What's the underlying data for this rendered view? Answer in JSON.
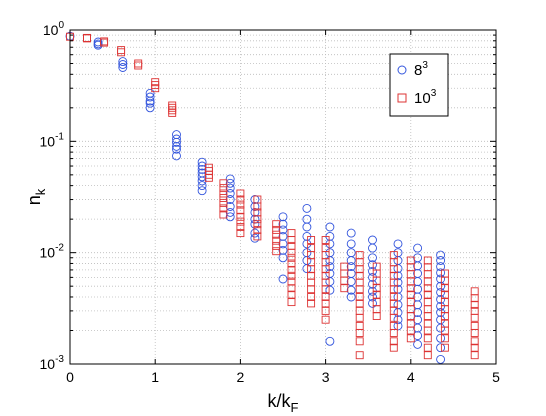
{
  "chart_data": {
    "type": "scatter",
    "xlabel": "k/k",
    "xlabel_sub": "F",
    "ylabel": "n",
    "ylabel_sub": "k",
    "xlim": [
      0,
      5
    ],
    "ylim": [
      0.001,
      1
    ],
    "yscale": "log",
    "grid": true,
    "legend_position": "top-right",
    "x_ticks": [
      0,
      1,
      2,
      3,
      4,
      5
    ],
    "y_ticks": [
      {
        "value": 1,
        "base": "10",
        "exp": "0"
      },
      {
        "value": 0.1,
        "base": "10",
        "exp": "-1"
      },
      {
        "value": 0.01,
        "base": "10",
        "exp": "-2"
      },
      {
        "value": 0.001,
        "base": "10",
        "exp": "-3"
      }
    ],
    "series": [
      {
        "name": "8",
        "name_sup": "3",
        "color": "#3355dd",
        "marker": "circle",
        "points": [
          [
            0.0,
            0.88
          ],
          [
            0.33,
            0.78
          ],
          [
            0.33,
            0.75
          ],
          [
            0.33,
            0.73
          ],
          [
            0.62,
            0.52
          ],
          [
            0.62,
            0.49
          ],
          [
            0.62,
            0.46
          ],
          [
            0.94,
            0.27
          ],
          [
            0.94,
            0.25
          ],
          [
            0.94,
            0.23
          ],
          [
            0.94,
            0.22
          ],
          [
            0.94,
            0.2
          ],
          [
            1.25,
            0.115
          ],
          [
            1.25,
            0.105
          ],
          [
            1.25,
            0.098
          ],
          [
            1.25,
            0.09
          ],
          [
            1.25,
            0.085
          ],
          [
            1.25,
            0.074
          ],
          [
            1.55,
            0.065
          ],
          [
            1.55,
            0.06
          ],
          [
            1.55,
            0.056
          ],
          [
            1.55,
            0.052
          ],
          [
            1.55,
            0.048
          ],
          [
            1.55,
            0.044
          ],
          [
            1.55,
            0.04
          ],
          [
            1.55,
            0.036
          ],
          [
            1.88,
            0.046
          ],
          [
            1.88,
            0.042
          ],
          [
            1.88,
            0.038
          ],
          [
            1.88,
            0.034
          ],
          [
            1.88,
            0.03
          ],
          [
            1.88,
            0.026
          ],
          [
            1.88,
            0.023
          ],
          [
            1.88,
            0.021
          ],
          [
            2.17,
            0.03
          ],
          [
            2.17,
            0.026
          ],
          [
            2.17,
            0.023
          ],
          [
            2.17,
            0.02
          ],
          [
            2.17,
            0.018
          ],
          [
            2.17,
            0.015
          ],
          [
            2.17,
            0.0135
          ],
          [
            2.5,
            0.021
          ],
          [
            2.5,
            0.018
          ],
          [
            2.5,
            0.016
          ],
          [
            2.5,
            0.014
          ],
          [
            2.5,
            0.012
          ],
          [
            2.5,
            0.0105
          ],
          [
            2.5,
            0.009
          ],
          [
            2.5,
            0.0058
          ],
          [
            2.78,
            0.025
          ],
          [
            2.78,
            0.02
          ],
          [
            2.78,
            0.017
          ],
          [
            2.78,
            0.014
          ],
          [
            2.78,
            0.012
          ],
          [
            2.78,
            0.01
          ],
          [
            2.78,
            0.0085
          ],
          [
            2.78,
            0.0072
          ],
          [
            3.05,
            0.017
          ],
          [
            3.05,
            0.014
          ],
          [
            3.05,
            0.012
          ],
          [
            3.05,
            0.01
          ],
          [
            3.05,
            0.0085
          ],
          [
            3.05,
            0.0075
          ],
          [
            3.05,
            0.0065
          ],
          [
            3.05,
            0.0055
          ],
          [
            3.05,
            0.0046
          ],
          [
            3.05,
            0.0016
          ],
          [
            3.3,
            0.015
          ],
          [
            3.3,
            0.012
          ],
          [
            3.3,
            0.01
          ],
          [
            3.3,
            0.0085
          ],
          [
            3.3,
            0.0075
          ],
          [
            3.3,
            0.0065
          ],
          [
            3.3,
            0.0055
          ],
          [
            3.3,
            0.0046
          ],
          [
            3.3,
            0.004
          ],
          [
            3.55,
            0.013
          ],
          [
            3.55,
            0.011
          ],
          [
            3.55,
            0.009
          ],
          [
            3.55,
            0.0078
          ],
          [
            3.55,
            0.0068
          ],
          [
            3.55,
            0.006
          ],
          [
            3.55,
            0.0052
          ],
          [
            3.55,
            0.0045
          ],
          [
            3.55,
            0.004
          ],
          [
            3.55,
            0.0035
          ],
          [
            3.85,
            0.012
          ],
          [
            3.85,
            0.01
          ],
          [
            3.85,
            0.0085
          ],
          [
            3.85,
            0.0072
          ],
          [
            3.85,
            0.0062
          ],
          [
            3.85,
            0.0054
          ],
          [
            3.85,
            0.0047
          ],
          [
            3.85,
            0.004
          ],
          [
            3.85,
            0.0034
          ],
          [
            3.85,
            0.0029
          ],
          [
            3.85,
            0.0025
          ],
          [
            3.85,
            0.0022
          ],
          [
            4.08,
            0.011
          ],
          [
            4.08,
            0.009
          ],
          [
            4.08,
            0.0076
          ],
          [
            4.08,
            0.0065
          ],
          [
            4.08,
            0.0055
          ],
          [
            4.08,
            0.0047
          ],
          [
            4.08,
            0.004
          ],
          [
            4.08,
            0.0034
          ],
          [
            4.08,
            0.0029
          ],
          [
            4.08,
            0.0025
          ],
          [
            4.08,
            0.0021
          ],
          [
            4.08,
            0.0018
          ],
          [
            4.08,
            0.0015
          ],
          [
            4.35,
            0.0095
          ],
          [
            4.35,
            0.0085
          ],
          [
            4.35,
            0.0075
          ],
          [
            4.35,
            0.0066
          ],
          [
            4.35,
            0.0058
          ],
          [
            4.35,
            0.005
          ],
          [
            4.35,
            0.0044
          ],
          [
            4.35,
            0.0038
          ],
          [
            4.35,
            0.0033
          ],
          [
            4.35,
            0.0029
          ],
          [
            4.35,
            0.0025
          ],
          [
            4.35,
            0.0021
          ],
          [
            4.35,
            0.0017
          ],
          [
            4.35,
            0.0014
          ],
          [
            4.35,
            0.0011
          ]
        ]
      },
      {
        "name": "10",
        "name_sup": "3",
        "color": "#dd3333",
        "marker": "square",
        "points": [
          [
            0.0,
            0.87
          ],
          [
            0.2,
            0.85
          ],
          [
            0.2,
            0.84
          ],
          [
            0.4,
            0.79
          ],
          [
            0.4,
            0.77
          ],
          [
            0.6,
            0.66
          ],
          [
            0.6,
            0.63
          ],
          [
            0.8,
            0.5
          ],
          [
            0.8,
            0.48
          ],
          [
            1.0,
            0.34
          ],
          [
            1.0,
            0.32
          ],
          [
            1.0,
            0.3
          ],
          [
            1.2,
            0.21
          ],
          [
            1.2,
            0.2
          ],
          [
            1.2,
            0.19
          ],
          [
            1.2,
            0.18
          ],
          [
            1.63,
            0.058
          ],
          [
            1.63,
            0.054
          ],
          [
            1.63,
            0.05
          ],
          [
            1.63,
            0.047
          ],
          [
            1.8,
            0.042
          ],
          [
            1.8,
            0.038
          ],
          [
            1.8,
            0.034
          ],
          [
            1.8,
            0.031
          ],
          [
            1.8,
            0.028
          ],
          [
            1.8,
            0.025
          ],
          [
            1.8,
            0.022
          ],
          [
            2.0,
            0.034
          ],
          [
            2.0,
            0.03
          ],
          [
            2.0,
            0.027
          ],
          [
            2.0,
            0.024
          ],
          [
            2.0,
            0.021
          ],
          [
            2.0,
            0.019
          ],
          [
            2.0,
            0.017
          ],
          [
            2.0,
            0.015
          ],
          [
            2.2,
            0.03
          ],
          [
            2.2,
            0.026
          ],
          [
            2.2,
            0.023
          ],
          [
            2.2,
            0.02
          ],
          [
            2.2,
            0.018
          ],
          [
            2.2,
            0.016
          ],
          [
            2.2,
            0.014
          ],
          [
            2.42,
            0.018
          ],
          [
            2.42,
            0.016
          ],
          [
            2.42,
            0.0145
          ],
          [
            2.42,
            0.0128
          ],
          [
            2.42,
            0.0115
          ],
          [
            2.42,
            0.0103
          ],
          [
            2.6,
            0.015
          ],
          [
            2.6,
            0.013
          ],
          [
            2.6,
            0.0115
          ],
          [
            2.6,
            0.01
          ],
          [
            2.6,
            0.009
          ],
          [
            2.6,
            0.008
          ],
          [
            2.6,
            0.007
          ],
          [
            2.6,
            0.0062
          ],
          [
            2.6,
            0.0055
          ],
          [
            2.6,
            0.0048
          ],
          [
            2.6,
            0.0042
          ],
          [
            2.6,
            0.0036
          ],
          [
            2.83,
            0.013
          ],
          [
            2.83,
            0.011
          ],
          [
            2.83,
            0.0095
          ],
          [
            2.83,
            0.0082
          ],
          [
            2.83,
            0.0071
          ],
          [
            2.83,
            0.0062
          ],
          [
            2.83,
            0.0054
          ],
          [
            2.83,
            0.0047
          ],
          [
            2.83,
            0.004
          ],
          [
            2.83,
            0.0035
          ],
          [
            3.0,
            0.013
          ],
          [
            3.0,
            0.011
          ],
          [
            3.0,
            0.0095
          ],
          [
            3.0,
            0.0082
          ],
          [
            3.0,
            0.0071
          ],
          [
            3.0,
            0.0062
          ],
          [
            3.0,
            0.0054
          ],
          [
            3.0,
            0.0047
          ],
          [
            3.0,
            0.004
          ],
          [
            3.0,
            0.0035
          ],
          [
            3.0,
            0.003
          ],
          [
            3.0,
            0.0025
          ],
          [
            3.22,
            0.0075
          ],
          [
            3.22,
            0.0065
          ],
          [
            3.22,
            0.0056
          ],
          [
            3.22,
            0.0048
          ],
          [
            3.4,
            0.0095
          ],
          [
            3.4,
            0.0082
          ],
          [
            3.4,
            0.0071
          ],
          [
            3.4,
            0.0062
          ],
          [
            3.4,
            0.0054
          ],
          [
            3.4,
            0.0047
          ],
          [
            3.4,
            0.004
          ],
          [
            3.4,
            0.0035
          ],
          [
            3.4,
            0.003
          ],
          [
            3.4,
            0.0026
          ],
          [
            3.4,
            0.0022
          ],
          [
            3.4,
            0.0019
          ],
          [
            3.4,
            0.0016
          ],
          [
            3.4,
            0.0012
          ],
          [
            3.6,
            0.0075
          ],
          [
            3.6,
            0.0065
          ],
          [
            3.6,
            0.0056
          ],
          [
            3.6,
            0.0048
          ],
          [
            3.6,
            0.0042
          ],
          [
            3.6,
            0.0036
          ],
          [
            3.6,
            0.0031
          ],
          [
            3.6,
            0.0027
          ],
          [
            3.8,
            0.0095
          ],
          [
            3.8,
            0.0082
          ],
          [
            3.8,
            0.0071
          ],
          [
            3.8,
            0.0062
          ],
          [
            3.8,
            0.0054
          ],
          [
            3.8,
            0.0047
          ],
          [
            3.8,
            0.004
          ],
          [
            3.8,
            0.0035
          ],
          [
            3.8,
            0.003
          ],
          [
            3.8,
            0.0026
          ],
          [
            3.8,
            0.0022
          ],
          [
            3.8,
            0.0019
          ],
          [
            3.8,
            0.0016
          ],
          [
            3.8,
            0.0014
          ],
          [
            4.0,
            0.0085
          ],
          [
            4.0,
            0.0074
          ],
          [
            4.0,
            0.0064
          ],
          [
            4.0,
            0.0055
          ],
          [
            4.0,
            0.0048
          ],
          [
            4.0,
            0.0042
          ],
          [
            4.0,
            0.0036
          ],
          [
            4.0,
            0.0031
          ],
          [
            4.0,
            0.0027
          ],
          [
            4.0,
            0.0023
          ],
          [
            4.0,
            0.002
          ],
          [
            4.0,
            0.0017
          ],
          [
            4.2,
            0.0085
          ],
          [
            4.2,
            0.0074
          ],
          [
            4.2,
            0.0064
          ],
          [
            4.2,
            0.0055
          ],
          [
            4.2,
            0.0048
          ],
          [
            4.2,
            0.0042
          ],
          [
            4.2,
            0.0036
          ],
          [
            4.2,
            0.0031
          ],
          [
            4.2,
            0.0027
          ],
          [
            4.2,
            0.0023
          ],
          [
            4.2,
            0.002
          ],
          [
            4.2,
            0.0017
          ],
          [
            4.2,
            0.0014
          ],
          [
            4.2,
            0.0012
          ],
          [
            4.4,
            0.0065
          ],
          [
            4.4,
            0.0056
          ],
          [
            4.4,
            0.0048
          ],
          [
            4.4,
            0.0042
          ],
          [
            4.4,
            0.0036
          ],
          [
            4.4,
            0.0031
          ],
          [
            4.4,
            0.0027
          ],
          [
            4.4,
            0.0023
          ],
          [
            4.4,
            0.002
          ],
          [
            4.4,
            0.0017
          ],
          [
            4.4,
            0.0014
          ],
          [
            4.75,
            0.0045
          ],
          [
            4.75,
            0.0039
          ],
          [
            4.75,
            0.0034
          ],
          [
            4.75,
            0.003
          ],
          [
            4.75,
            0.0026
          ],
          [
            4.75,
            0.0022
          ],
          [
            4.75,
            0.0019
          ],
          [
            4.75,
            0.0016
          ],
          [
            4.75,
            0.0014
          ],
          [
            4.75,
            0.0012
          ]
        ]
      }
    ]
  }
}
